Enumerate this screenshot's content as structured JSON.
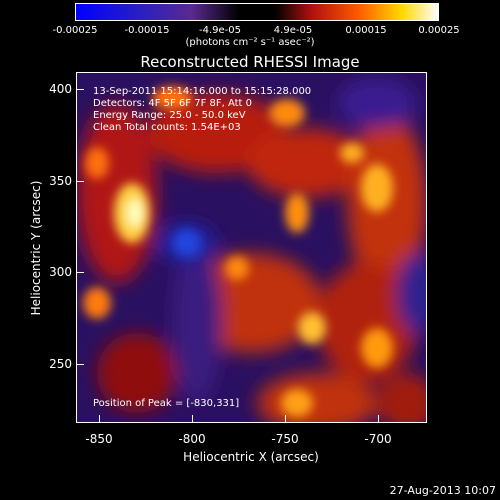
{
  "colorbar": {
    "ticks": [
      "-0.00025",
      "-0.00015",
      "-4.9e-05",
      "4.9e-05",
      "0.00015",
      "0.00025"
    ],
    "units": "(photons cm⁻² s⁻¹ asec⁻²)"
  },
  "title": "Reconstructed RHESSI Image",
  "info": {
    "time_range": "13-Sep-2011 15:14:16.000 to 15:15:28.000",
    "detectors": "Detectors: 4F 5F 6F 7F 8F, Att 0",
    "energy": "Energy Range: 25.0 - 50.0 keV",
    "clean": "Clean     Total counts: 1.54E+03",
    "peak": "Position of Peak = [-830,331]"
  },
  "axes": {
    "xlabel": "Heliocentric X (arcsec)",
    "ylabel": "Heliocentric Y (arcsec)",
    "xticks": [
      "-850",
      "-800",
      "-750",
      "-700"
    ],
    "yticks": [
      "400",
      "350",
      "300",
      "250"
    ]
  },
  "timestamp": "27-Aug-2013 10:07"
}
